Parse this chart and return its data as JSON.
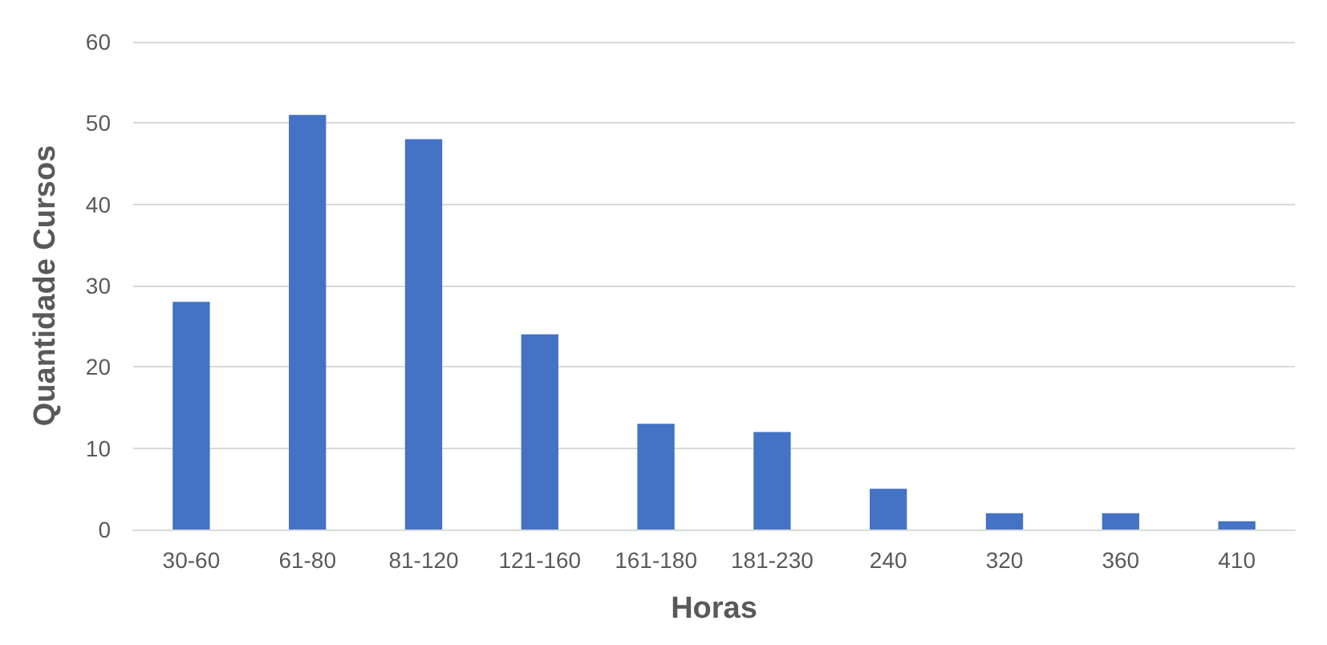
{
  "chart_data": {
    "type": "bar",
    "xlabel": "Horas",
    "ylabel": "Quantidade Cursos",
    "categories": [
      "30-60",
      "61-80",
      "81-120",
      "121-160",
      "161-180",
      "181-230",
      "240",
      "320",
      "360",
      "410"
    ],
    "values": [
      28,
      51,
      48,
      24,
      13,
      12,
      5,
      2,
      2,
      1
    ],
    "color": "#4472c4",
    "ylim": [
      0,
      60
    ],
    "yticks": [
      0,
      10,
      20,
      30,
      40,
      50,
      60
    ],
    "grid": "y"
  }
}
